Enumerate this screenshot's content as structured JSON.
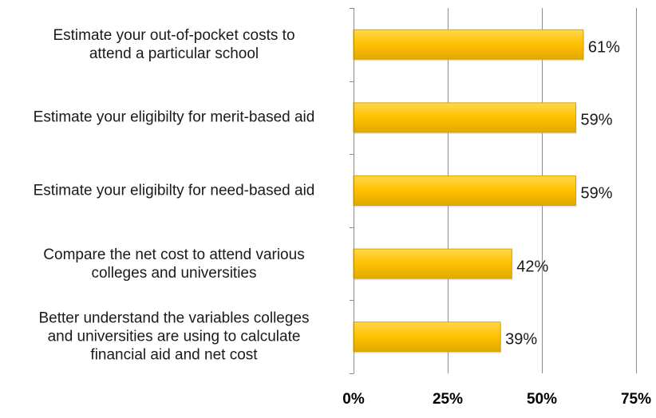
{
  "chart_data": {
    "type": "bar",
    "orientation": "horizontal",
    "categories": [
      "Estimate your out-of-pocket costs to\nattend a particular school",
      "Estimate your eligibilty for merit-based aid",
      "Estimate your eligibilty for need-based aid",
      "Compare the net cost to attend various\ncolleges and universities",
      "Better understand the variables colleges\nand universities are using to calculate\nfinancial aid and net cost"
    ],
    "values": [
      61,
      59,
      59,
      42,
      39
    ],
    "value_labels": [
      "61%",
      "59%",
      "59%",
      "42%",
      "39%"
    ],
    "xlim": [
      0,
      75
    ],
    "x_ticks": [
      0,
      25,
      50,
      75
    ],
    "x_tick_labels": [
      "0%",
      "25%",
      "50%",
      "75%"
    ],
    "grid": true,
    "legend": "none",
    "bar_color": "#FFC000"
  }
}
